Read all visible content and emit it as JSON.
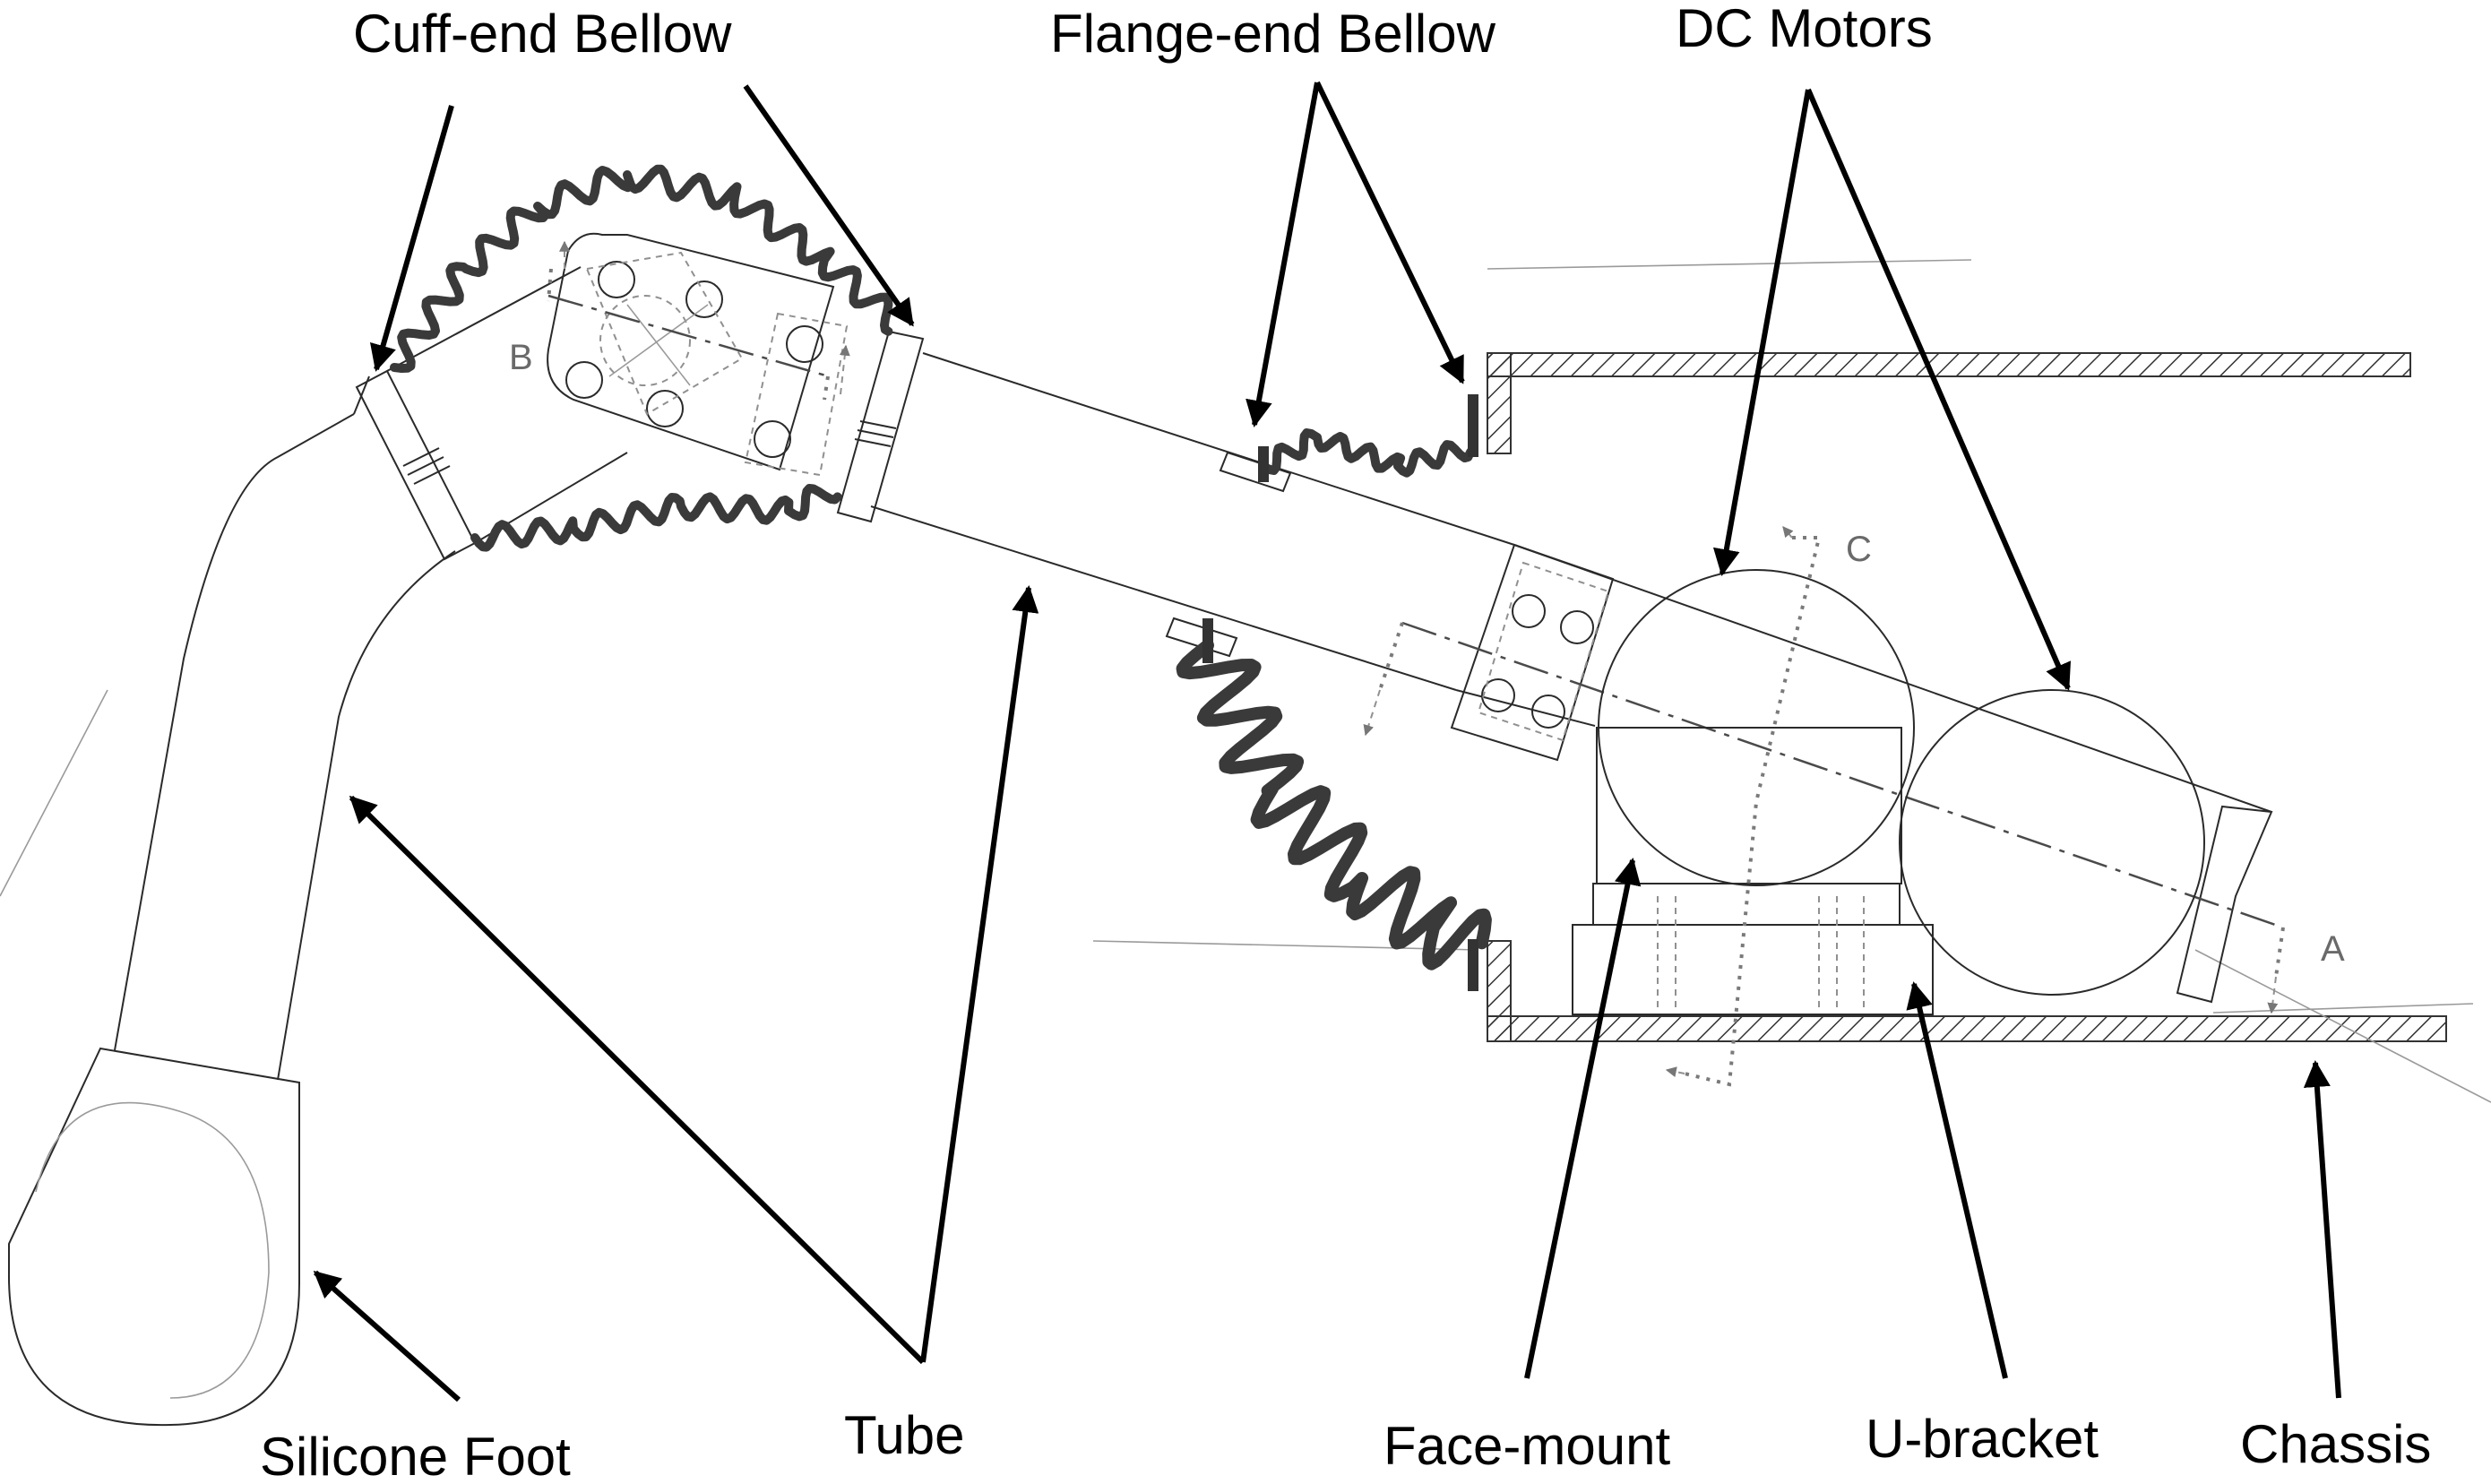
{
  "labels": {
    "cuff_end_bellow": "Cuff-end Bellow",
    "flange_end_bellow": "Flange-end Bellow",
    "dc_motors": "DC Motors",
    "tube": "Tube",
    "silicone_foot": "Silicone Foot",
    "face_mount": "Face-mount",
    "u_bracket": "U-bracket",
    "chassis": "Chassis"
  },
  "section_markers": {
    "a": "A",
    "b": "B",
    "c": "C"
  },
  "colors": {
    "labels": "#000000",
    "lines": "#2a2a2a",
    "bellows": "#3a3a3a",
    "section_markers": "#6a6a6a",
    "background": "#ffffff"
  }
}
